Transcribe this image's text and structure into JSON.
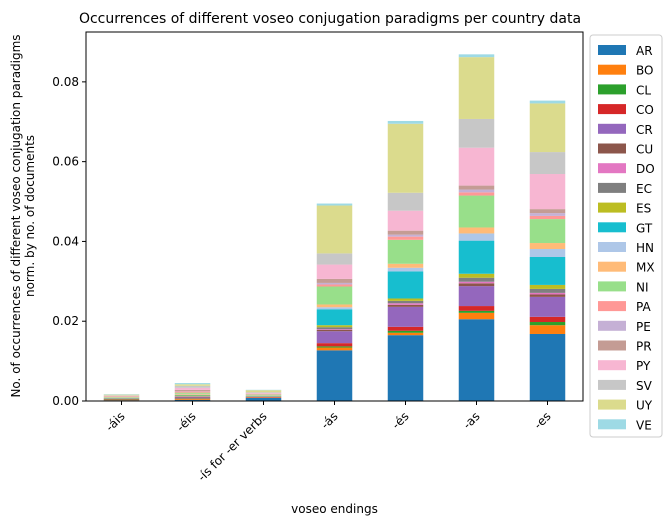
{
  "chart_data": {
    "type": "bar",
    "stacked": true,
    "title": "Occurrences of different voseo conjugation paradigms per country data",
    "xlabel": "voseo endings",
    "ylabel": [
      "No. of occurrences of different voseo conjugation paradigms",
      "norm. by no. of documents"
    ],
    "ylim": [
      0,
      0.0925
    ],
    "yticks": [
      0.0,
      0.02,
      0.04,
      0.06,
      0.08
    ],
    "ytick_labels": [
      "0.00",
      "0.02",
      "0.04",
      "0.06",
      "0.08"
    ],
    "legend_position": "right-outside-top",
    "categories": [
      "-áis",
      "-éis",
      "-ís for -er verbs",
      "-ás",
      "-és",
      "-as",
      "-es"
    ],
    "series": [
      {
        "name": "AR",
        "color": "#1f77b4",
        "values": [
          0.0002,
          0.0003,
          0.0008,
          0.0127,
          0.0165,
          0.0205,
          0.0168
        ]
      },
      {
        "name": "BO",
        "color": "#ff7f0e",
        "values": [
          0.0001,
          0.0002,
          0.0001,
          0.0007,
          0.0006,
          0.0016,
          0.0022
        ]
      },
      {
        "name": "CL",
        "color": "#2ca02c",
        "values": [
          0.0001,
          0.0001,
          0.0,
          0.0003,
          0.0005,
          0.0005,
          0.0008
        ]
      },
      {
        "name": "CO",
        "color": "#d62728",
        "values": [
          0.0001,
          0.0001,
          0.0001,
          0.0008,
          0.001,
          0.0012,
          0.0013
        ]
      },
      {
        "name": "CR",
        "color": "#9467bd",
        "values": [
          0.0001,
          0.0002,
          0.0001,
          0.003,
          0.005,
          0.005,
          0.005
        ]
      },
      {
        "name": "CU",
        "color": "#8c564b",
        "values": [
          0.0,
          0.0001,
          0.0,
          0.0003,
          0.0005,
          0.0007,
          0.0006
        ]
      },
      {
        "name": "DO",
        "color": "#e377c2",
        "values": [
          0.0,
          0.0001,
          0.0,
          0.0002,
          0.0004,
          0.0004,
          0.0004
        ]
      },
      {
        "name": "EC",
        "color": "#7f7f7f",
        "values": [
          0.0,
          0.0001,
          0.0,
          0.0005,
          0.0006,
          0.001,
          0.001
        ]
      },
      {
        "name": "ES",
        "color": "#bcbd22",
        "values": [
          0.0001,
          0.0002,
          0.0001,
          0.0005,
          0.0006,
          0.001,
          0.001
        ]
      },
      {
        "name": "GT",
        "color": "#17becf",
        "values": [
          0.0001,
          0.0001,
          0.0001,
          0.004,
          0.0068,
          0.0083,
          0.007
        ]
      },
      {
        "name": "HN",
        "color": "#aec7e8",
        "values": [
          0.0,
          0.0001,
          0.0,
          0.0005,
          0.0009,
          0.0018,
          0.002
        ]
      },
      {
        "name": "MX",
        "color": "#ffbb78",
        "values": [
          0.0001,
          0.0002,
          0.0001,
          0.0007,
          0.001,
          0.0015,
          0.0015
        ]
      },
      {
        "name": "NI",
        "color": "#98df8a",
        "values": [
          0.0001,
          0.0003,
          0.0002,
          0.0045,
          0.006,
          0.008,
          0.006
        ]
      },
      {
        "name": "PA",
        "color": "#ff9896",
        "values": [
          0.0001,
          0.0003,
          0.0001,
          0.0005,
          0.0008,
          0.0008,
          0.0008
        ]
      },
      {
        "name": "PE",
        "color": "#c5b0d5",
        "values": [
          0.0,
          0.0001,
          0.0,
          0.0004,
          0.0005,
          0.0007,
          0.0007
        ]
      },
      {
        "name": "PR",
        "color": "#c49c94",
        "values": [
          0.0001,
          0.0003,
          0.0001,
          0.001,
          0.001,
          0.001,
          0.001
        ]
      },
      {
        "name": "PY",
        "color": "#f7b6d2",
        "values": [
          0.0001,
          0.0005,
          0.0002,
          0.0036,
          0.005,
          0.0095,
          0.0088
        ]
      },
      {
        "name": "SV",
        "color": "#c7c7c7",
        "values": [
          0.0001,
          0.0005,
          0.0002,
          0.0028,
          0.0045,
          0.0072,
          0.0055
        ]
      },
      {
        "name": "UY",
        "color": "#dbdb8d",
        "values": [
          0.0002,
          0.0004,
          0.0005,
          0.012,
          0.0173,
          0.0155,
          0.0122
        ]
      },
      {
        "name": "VE",
        "color": "#9edae5",
        "values": [
          0.0001,
          0.0003,
          0.0001,
          0.0005,
          0.0007,
          0.0007,
          0.0007
        ]
      }
    ]
  }
}
